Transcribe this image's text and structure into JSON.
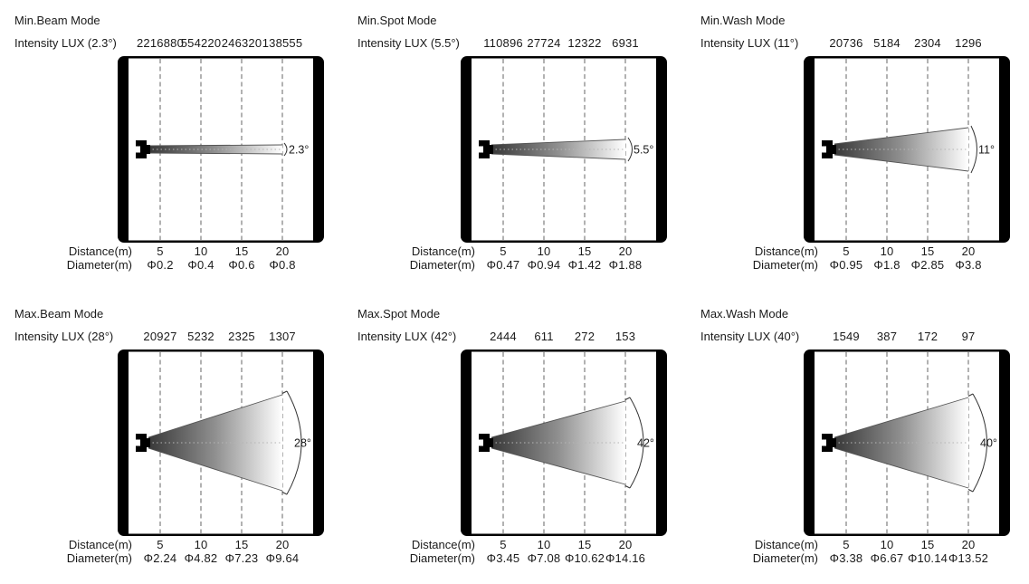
{
  "colors": {
    "frame": "#000000",
    "beam_dark": "#383838",
    "beam_mid": "#909090",
    "beam_light": "#ffffff",
    "gridline": "#666666",
    "centerline": "#b5b5b5",
    "text": "#1a1a1a"
  },
  "panels": [
    {
      "title": "Min.Beam Mode",
      "intensity_label": "Intensity LUX (2.3°)",
      "angle_label": "2.3°",
      "angle_deg": 2.3,
      "intensities": [
        "2216880",
        "554220",
        "246320",
        "138555"
      ],
      "distance_label": "Distance(m)",
      "distances": [
        "5",
        "10",
        "15",
        "20"
      ],
      "diameter_label": "Diameter(m)",
      "diameters": [
        "Φ0.2",
        "Φ0.4",
        "Φ0.6",
        "Φ0.8"
      ]
    },
    {
      "title": "Min.Spot Mode",
      "intensity_label": "Intensity LUX (5.5°)",
      "angle_label": "5.5°",
      "angle_deg": 5.5,
      "intensities": [
        "110896",
        "27724",
        "12322",
        "6931"
      ],
      "distance_label": "Distance(m)",
      "distances": [
        "5",
        "10",
        "15",
        "20"
      ],
      "diameter_label": "Diameter(m)",
      "diameters": [
        "Φ0.47",
        "Φ0.94",
        "Φ1.42",
        "Φ1.88"
      ]
    },
    {
      "title": "Min.Wash Mode",
      "intensity_label": "Intensity LUX (11°)",
      "angle_label": "11°",
      "angle_deg": 11,
      "intensities": [
        "20736",
        "5184",
        "2304",
        "1296"
      ],
      "distance_label": "Distance(m)",
      "distances": [
        "5",
        "10",
        "15",
        "20"
      ],
      "diameter_label": "Diameter(m)",
      "diameters": [
        "Φ0.95",
        "Φ1.8",
        "Φ2.85",
        "Φ3.8"
      ]
    },
    {
      "title": "Max.Beam Mode",
      "intensity_label": "Intensity LUX (28°)",
      "angle_label": "28°",
      "angle_deg": 28,
      "intensities": [
        "20927",
        "5232",
        "2325",
        "1307"
      ],
      "distance_label": "Distance(m)",
      "distances": [
        "5",
        "10",
        "15",
        "20"
      ],
      "diameter_label": "Diameter(m)",
      "diameters": [
        "Φ2.24",
        "Φ4.82",
        "Φ7.23",
        "Φ9.64"
      ]
    },
    {
      "title": "Max.Spot Mode",
      "intensity_label": "Intensity LUX (42°)",
      "angle_label": "42°",
      "angle_deg": 42,
      "intensities": [
        "2444",
        "611",
        "272",
        "153"
      ],
      "distance_label": "Distance(m)",
      "distances": [
        "5",
        "10",
        "15",
        "20"
      ],
      "diameter_label": "Diameter(m)",
      "diameters": [
        "Φ3.45",
        "Φ7.08",
        "Φ10.62",
        "Φ14.16"
      ]
    },
    {
      "title": "Max.Wash Mode",
      "intensity_label": "Intensity LUX (40°)",
      "angle_label": "40°",
      "angle_deg": 40,
      "intensities": [
        "1549",
        "387",
        "172",
        "97"
      ],
      "distance_label": "Distance(m)",
      "distances": [
        "5",
        "10",
        "15",
        "20"
      ],
      "diameter_label": "Diameter(m)",
      "diameters": [
        "Φ3.38",
        "Φ6.67",
        "Φ10.14",
        "Φ13.52"
      ]
    }
  ]
}
